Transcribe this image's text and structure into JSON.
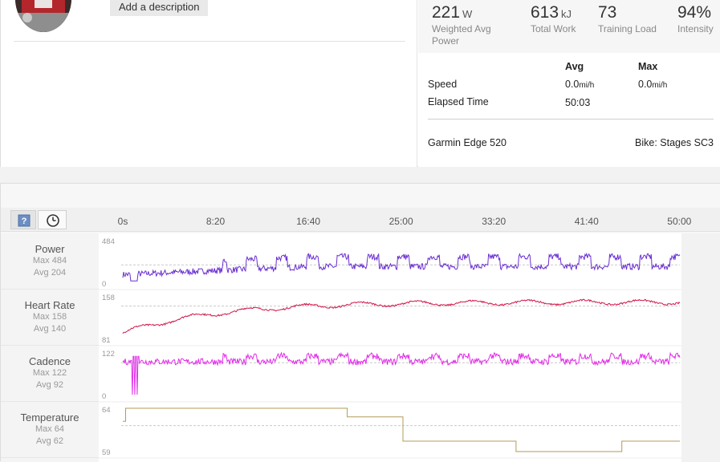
{
  "profile": {
    "description_button": "Add a description"
  },
  "stats": [
    {
      "value": "221",
      "unit": "W",
      "label_line1": "Weighted Avg",
      "label_line2": "Power"
    },
    {
      "value": "613",
      "unit": "kJ",
      "label_line1": "Total Work",
      "label_line2": ""
    },
    {
      "value": "73",
      "unit": "",
      "label_line1": "Training Load",
      "label_line2": ""
    },
    {
      "value": "94%",
      "unit": "",
      "label_line1": "Intensity",
      "label_line2": ""
    }
  ],
  "summary": {
    "col_avg": "Avg",
    "col_max": "Max",
    "speed_label": "Speed",
    "speed_avg": "0.0",
    "speed_max": "0.0",
    "speed_unit": "mi/h",
    "elapsed_label": "Elapsed Time",
    "elapsed_avg": "50:03",
    "device": "Garmin Edge 520",
    "bike": "Bike: Stages SC3"
  },
  "toolbar": {
    "help_icon": "question-icon",
    "clock_icon": "clock-icon"
  },
  "time_axis": {
    "ticks": [
      {
        "label": "0s",
        "t": 0
      },
      {
        "label": "8:20",
        "t": 500
      },
      {
        "label": "16:40",
        "t": 1000
      },
      {
        "label": "25:00",
        "t": 1500
      },
      {
        "label": "33:20",
        "t": 2000
      },
      {
        "label": "41:40",
        "t": 2500
      },
      {
        "label": "50:00",
        "t": 3000
      }
    ],
    "max_t": 3003
  },
  "metrics": [
    {
      "name": "Power",
      "max_label": "Max 484",
      "avg_label": "Avg 204",
      "axis_max": "484",
      "axis_min": "0",
      "min": 0,
      "max": 484,
      "avg": 204,
      "color": "#6a2fd0"
    },
    {
      "name": "Heart Rate",
      "max_label": "Max 158",
      "avg_label": "Avg 140",
      "axis_max": "158",
      "axis_min": "81",
      "min": 81,
      "max": 158,
      "avg": 140,
      "color": "#d0174a"
    },
    {
      "name": "Cadence",
      "max_label": "Max 122",
      "avg_label": "Avg 92",
      "axis_max": "122",
      "axis_min": "0",
      "min": 0,
      "max": 122,
      "avg": 92,
      "color": "#e12ce8"
    },
    {
      "name": "Temperature",
      "max_label": "Max 64",
      "avg_label": "Avg 62",
      "axis_max": "64",
      "axis_min": "59",
      "min": 59,
      "max": 64,
      "avg": 62,
      "color": "#b49a5a"
    }
  ],
  "chart_data": {
    "type": "line",
    "x_unit": "seconds",
    "xlim": [
      0,
      3003
    ],
    "temperature_steps": [
      {
        "t": 0,
        "v": 62.5
      },
      {
        "t": 15,
        "v": 64
      },
      {
        "t": 1210,
        "v": 63
      },
      {
        "t": 1510,
        "v": 60.2
      },
      {
        "t": 2120,
        "v": 59
      },
      {
        "t": 2690,
        "v": 60.2
      },
      {
        "t": 3003,
        "v": 60.2
      }
    ]
  }
}
